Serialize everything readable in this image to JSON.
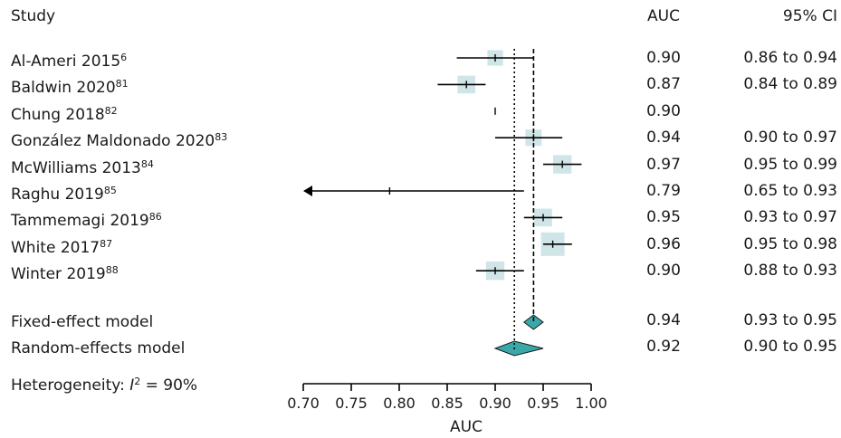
{
  "chart_data": {
    "type": "forest",
    "headers": {
      "study": "Study",
      "auc": "AUC",
      "ci": "95% CI"
    },
    "studies": [
      {
        "name": "Al-Ameri 2015",
        "ref": "6",
        "auc": 0.9,
        "auc_text": "0.90",
        "lo": 0.86,
        "hi": 0.94,
        "ci_text": "0.86 to 0.94",
        "weight": 0.45
      },
      {
        "name": "Baldwin 2020",
        "ref": "81",
        "auc": 0.87,
        "auc_text": "0.87",
        "lo": 0.84,
        "hi": 0.89,
        "ci_text": "0.84 to 0.89",
        "weight": 0.6
      },
      {
        "name": "Chung 2018",
        "ref": "82",
        "auc": 0.9,
        "auc_text": "0.90",
        "lo": 0.9,
        "hi": 0.9,
        "ci_text": "",
        "weight": 0.0
      },
      {
        "name": "González Maldonado 2020",
        "ref": "83",
        "auc": 0.94,
        "auc_text": "0.94",
        "lo": 0.9,
        "hi": 0.97,
        "ci_text": "0.90 to 0.97",
        "weight": 0.5
      },
      {
        "name": "McWilliams 2013",
        "ref": "84",
        "auc": 0.97,
        "auc_text": "0.97",
        "lo": 0.95,
        "hi": 0.99,
        "ci_text": "0.95 to 0.99",
        "weight": 0.65
      },
      {
        "name": "Raghu 2019",
        "ref": "85",
        "auc": 0.79,
        "auc_text": "0.79",
        "lo": 0.65,
        "hi": 0.93,
        "ci_text": "0.65 to 0.93",
        "weight": 0.0,
        "arrow_left": true
      },
      {
        "name": "Tammemagi 2019",
        "ref": "86",
        "auc": 0.95,
        "auc_text": "0.95",
        "lo": 0.93,
        "hi": 0.97,
        "ci_text": "0.93 to 0.97",
        "weight": 0.6
      },
      {
        "name": "White 2017",
        "ref": "87",
        "auc": 0.96,
        "auc_text": "0.96",
        "lo": 0.95,
        "hi": 0.98,
        "ci_text": "0.95 to 0.98",
        "weight": 1.0
      },
      {
        "name": "Winter 2019",
        "ref": "88",
        "auc": 0.9,
        "auc_text": "0.90",
        "lo": 0.88,
        "hi": 0.93,
        "ci_text": "0.88 to 0.93",
        "weight": 0.65
      }
    ],
    "models": [
      {
        "name": "Fixed-effect model",
        "auc": 0.94,
        "auc_text": "0.94",
        "lo": 0.93,
        "hi": 0.95,
        "ci_text": "0.93 to 0.95"
      },
      {
        "name": "Random-effects model",
        "auc": 0.92,
        "auc_text": "0.92",
        "lo": 0.9,
        "hi": 0.95,
        "ci_text": "0.90 to 0.95"
      }
    ],
    "heterogeneity": {
      "prefix": "Heterogeneity: ",
      "symbol": "I",
      "exp": "2",
      "suffix": " = 90%"
    },
    "x_axis": {
      "label": "AUC",
      "range": [
        0.7,
        1.0
      ],
      "ticks": [
        0.7,
        0.75,
        0.8,
        0.85,
        0.9,
        0.95,
        1.0
      ],
      "tick_labels": [
        "0.70",
        "0.75",
        "0.80",
        "0.85",
        "0.90",
        "0.95",
        "1.00"
      ]
    },
    "reference_lines": {
      "fixed": 0.94,
      "random": 0.92
    },
    "colors": {
      "box": "#cfe5e8",
      "diamond": "#3aa8a8",
      "line": "#000000"
    }
  }
}
